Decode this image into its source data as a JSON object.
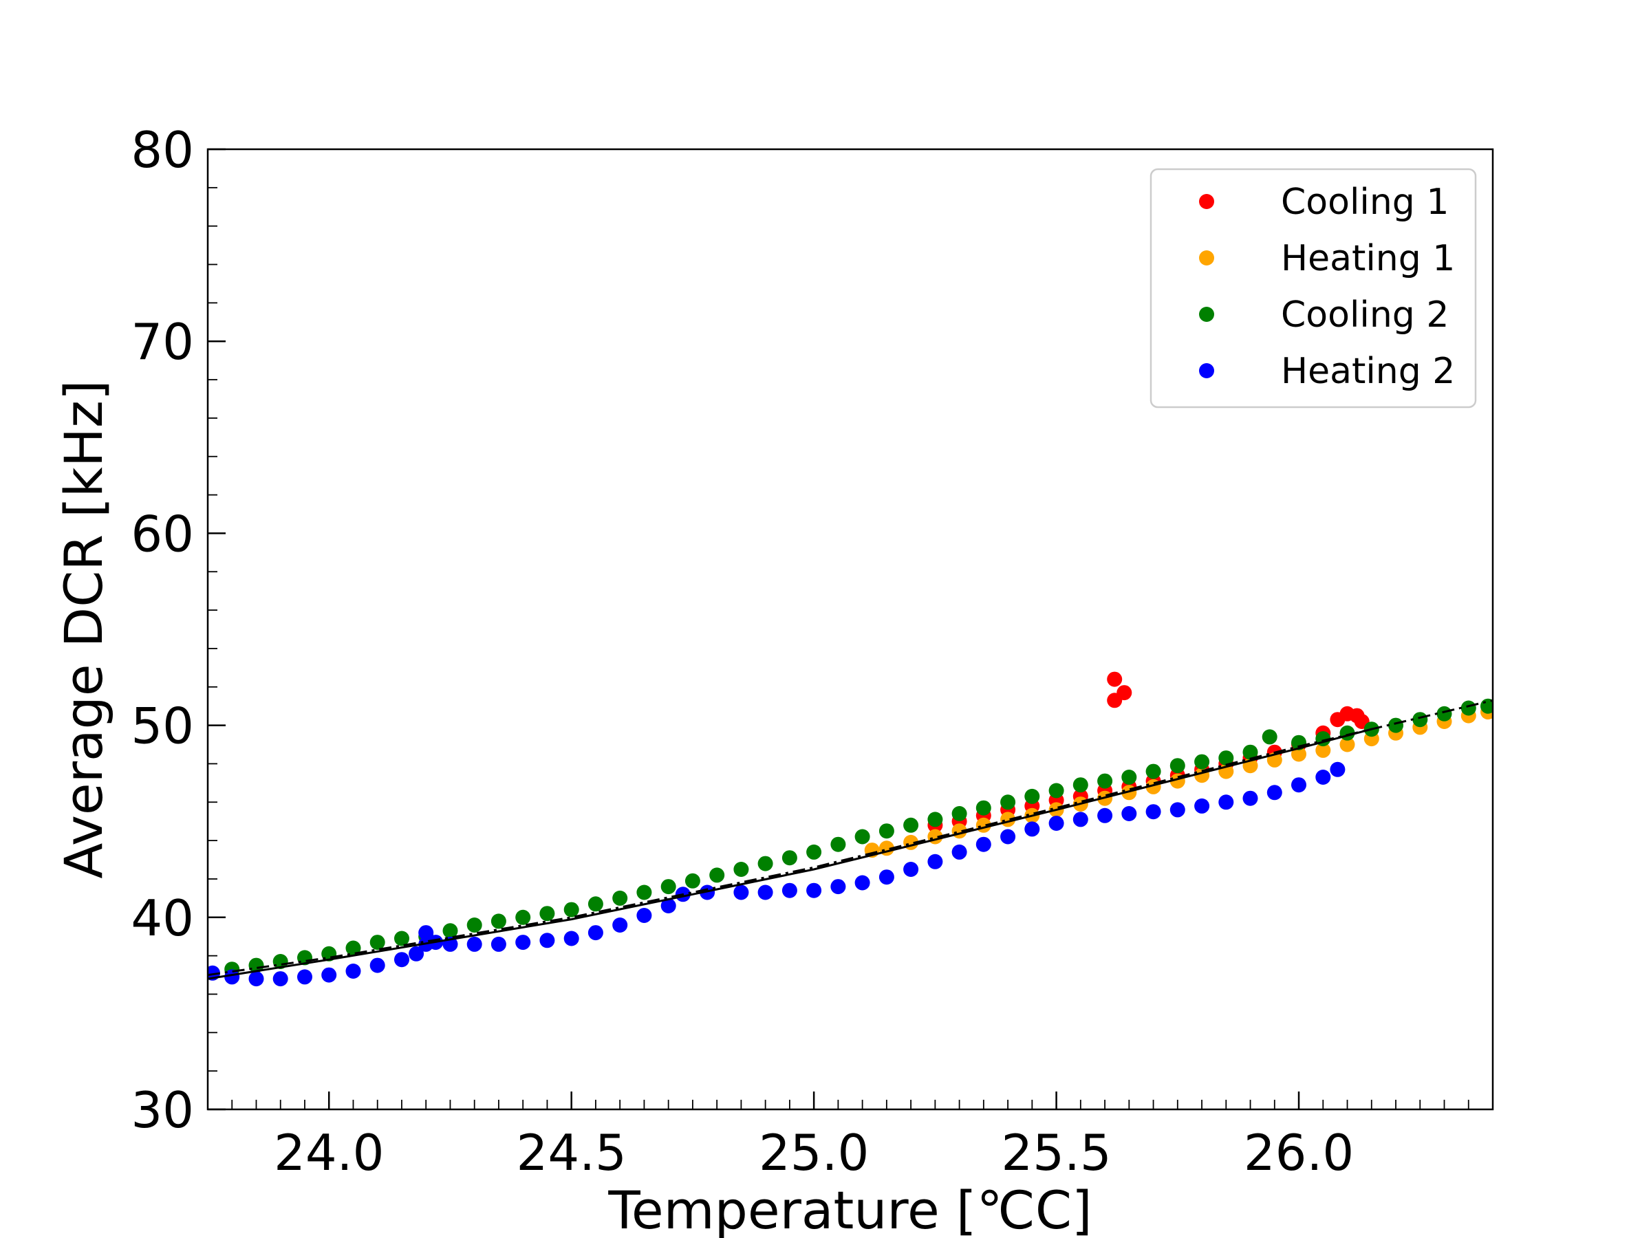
{
  "chart_data": {
    "type": "scatter",
    "title": "",
    "xlabel": "Temperature [℃C]",
    "ylabel": "Average DCR [kHz]",
    "xlim": [
      23.75,
      26.4
    ],
    "ylim": [
      30,
      80
    ],
    "x_ticks": [
      24.0,
      24.5,
      25.0,
      25.5,
      26.0
    ],
    "x_tick_labels": [
      "24.0",
      "24.5",
      "25.0",
      "25.5",
      "26.0"
    ],
    "y_ticks": [
      30,
      40,
      50,
      60,
      70,
      80
    ],
    "y_tick_labels": [
      "30",
      "40",
      "50",
      "60",
      "70",
      "80"
    ],
    "grid": false,
    "legend": {
      "position": "top-right",
      "entries": [
        {
          "label": "Cooling 1",
          "color": "#ff0000"
        },
        {
          "label": "Heating 1",
          "color": "#ffa500"
        },
        {
          "label": "Cooling 2",
          "color": "#008000"
        },
        {
          "label": "Heating 2",
          "color": "#0000ff"
        }
      ]
    },
    "series": [
      {
        "name": "Cooling 1",
        "color": "#ff0000",
        "points": [
          [
            25.25,
            44.8
          ],
          [
            25.3,
            45.0
          ],
          [
            25.35,
            45.3
          ],
          [
            25.4,
            45.6
          ],
          [
            25.45,
            45.8
          ],
          [
            25.5,
            46.1
          ],
          [
            25.55,
            46.3
          ],
          [
            25.6,
            46.6
          ],
          [
            25.65,
            46.8
          ],
          [
            25.7,
            47.1
          ],
          [
            25.75,
            47.4
          ],
          [
            25.8,
            47.7
          ],
          [
            25.85,
            48.0
          ],
          [
            25.9,
            48.3
          ],
          [
            25.95,
            48.6
          ],
          [
            26.0,
            49.0
          ],
          [
            26.05,
            49.6
          ],
          [
            26.08,
            50.3
          ],
          [
            26.1,
            50.6
          ],
          [
            26.12,
            50.5
          ],
          [
            26.13,
            50.2
          ],
          [
            25.62,
            52.4
          ],
          [
            25.62,
            51.3
          ],
          [
            25.64,
            51.7
          ]
        ]
      },
      {
        "name": "Heating 1",
        "color": "#ffa500",
        "points": [
          [
            25.12,
            43.5
          ],
          [
            25.15,
            43.6
          ],
          [
            25.2,
            43.9
          ],
          [
            25.25,
            44.2
          ],
          [
            25.3,
            44.5
          ],
          [
            25.35,
            44.8
          ],
          [
            25.4,
            45.1
          ],
          [
            25.45,
            45.3
          ],
          [
            25.5,
            45.6
          ],
          [
            25.55,
            45.9
          ],
          [
            25.6,
            46.2
          ],
          [
            25.65,
            46.5
          ],
          [
            25.7,
            46.8
          ],
          [
            25.75,
            47.1
          ],
          [
            25.8,
            47.4
          ],
          [
            25.85,
            47.6
          ],
          [
            25.9,
            47.9
          ],
          [
            25.95,
            48.2
          ],
          [
            26.0,
            48.5
          ],
          [
            26.05,
            48.7
          ],
          [
            26.1,
            49.0
          ],
          [
            26.15,
            49.3
          ],
          [
            26.2,
            49.6
          ],
          [
            26.25,
            49.9
          ],
          [
            26.3,
            50.2
          ],
          [
            26.35,
            50.5
          ],
          [
            26.39,
            50.7
          ]
        ]
      },
      {
        "name": "Cooling 2",
        "color": "#008000",
        "points": [
          [
            23.8,
            37.3
          ],
          [
            23.85,
            37.5
          ],
          [
            23.9,
            37.7
          ],
          [
            23.95,
            37.9
          ],
          [
            24.0,
            38.1
          ],
          [
            24.05,
            38.4
          ],
          [
            24.1,
            38.7
          ],
          [
            24.15,
            38.9
          ],
          [
            24.2,
            39.0
          ],
          [
            24.25,
            39.3
          ],
          [
            24.3,
            39.6
          ],
          [
            24.35,
            39.8
          ],
          [
            24.4,
            40.0
          ],
          [
            24.45,
            40.2
          ],
          [
            24.5,
            40.4
          ],
          [
            24.55,
            40.7
          ],
          [
            24.6,
            41.0
          ],
          [
            24.65,
            41.3
          ],
          [
            24.7,
            41.6
          ],
          [
            24.75,
            41.9
          ],
          [
            24.8,
            42.2
          ],
          [
            24.85,
            42.5
          ],
          [
            24.9,
            42.8
          ],
          [
            24.95,
            43.1
          ],
          [
            25.0,
            43.4
          ],
          [
            25.05,
            43.8
          ],
          [
            25.1,
            44.2
          ],
          [
            25.15,
            44.5
          ],
          [
            25.2,
            44.8
          ],
          [
            25.25,
            45.1
          ],
          [
            25.3,
            45.4
          ],
          [
            25.35,
            45.7
          ],
          [
            25.4,
            46.0
          ],
          [
            25.45,
            46.3
          ],
          [
            25.5,
            46.6
          ],
          [
            25.55,
            46.9
          ],
          [
            25.6,
            47.1
          ],
          [
            25.65,
            47.3
          ],
          [
            25.7,
            47.6
          ],
          [
            25.75,
            47.9
          ],
          [
            25.8,
            48.1
          ],
          [
            25.85,
            48.3
          ],
          [
            25.9,
            48.6
          ],
          [
            25.94,
            49.4
          ],
          [
            26.0,
            49.1
          ],
          [
            26.05,
            49.3
          ],
          [
            26.1,
            49.6
          ],
          [
            26.15,
            49.8
          ],
          [
            26.2,
            50.0
          ],
          [
            26.25,
            50.3
          ],
          [
            26.3,
            50.6
          ],
          [
            26.35,
            50.9
          ],
          [
            26.39,
            51.0
          ]
        ]
      },
      {
        "name": "Heating 2",
        "color": "#0000ff",
        "points": [
          [
            23.76,
            37.1
          ],
          [
            23.8,
            36.9
          ],
          [
            23.85,
            36.8
          ],
          [
            23.9,
            36.8
          ],
          [
            23.95,
            36.9
          ],
          [
            24.0,
            37.0
          ],
          [
            24.05,
            37.2
          ],
          [
            24.1,
            37.5
          ],
          [
            24.15,
            37.8
          ],
          [
            24.18,
            38.1
          ],
          [
            24.2,
            38.6
          ],
          [
            24.2,
            39.2
          ],
          [
            24.22,
            38.7
          ],
          [
            24.25,
            38.6
          ],
          [
            24.3,
            38.6
          ],
          [
            24.35,
            38.6
          ],
          [
            24.4,
            38.7
          ],
          [
            24.45,
            38.8
          ],
          [
            24.5,
            38.9
          ],
          [
            24.55,
            39.2
          ],
          [
            24.6,
            39.6
          ],
          [
            24.65,
            40.1
          ],
          [
            24.7,
            40.6
          ],
          [
            24.73,
            41.2
          ],
          [
            24.78,
            41.3
          ],
          [
            24.85,
            41.3
          ],
          [
            24.9,
            41.3
          ],
          [
            24.95,
            41.4
          ],
          [
            25.0,
            41.4
          ],
          [
            25.05,
            41.6
          ],
          [
            25.1,
            41.8
          ],
          [
            25.15,
            42.1
          ],
          [
            25.2,
            42.5
          ],
          [
            25.25,
            42.9
          ],
          [
            25.3,
            43.4
          ],
          [
            25.35,
            43.8
          ],
          [
            25.4,
            44.2
          ],
          [
            25.45,
            44.6
          ],
          [
            25.5,
            44.9
          ],
          [
            25.55,
            45.1
          ],
          [
            25.6,
            45.3
          ],
          [
            25.65,
            45.4
          ],
          [
            25.7,
            45.5
          ],
          [
            25.75,
            45.6
          ],
          [
            25.8,
            45.8
          ],
          [
            25.85,
            46.0
          ],
          [
            25.9,
            46.2
          ],
          [
            25.95,
            46.5
          ],
          [
            26.0,
            46.9
          ],
          [
            26.05,
            47.3
          ],
          [
            26.08,
            47.7
          ]
        ]
      }
    ],
    "fit_lines": [
      {
        "name": "fit-solid",
        "style": "solid",
        "color": "#000000",
        "points": [
          [
            23.75,
            36.8
          ],
          [
            24.0,
            37.8
          ],
          [
            24.5,
            39.9
          ],
          [
            25.0,
            42.5
          ],
          [
            25.5,
            45.6
          ],
          [
            26.0,
            48.8
          ],
          [
            26.15,
            49.8
          ]
        ]
      },
      {
        "name": "fit-dashdot",
        "style": "dashdot",
        "color": "#000000",
        "points": [
          [
            23.75,
            37.0
          ],
          [
            24.0,
            37.9
          ],
          [
            24.5,
            40.0
          ],
          [
            25.0,
            42.6
          ],
          [
            25.5,
            45.7
          ],
          [
            26.0,
            48.9
          ],
          [
            26.4,
            51.3
          ]
        ]
      }
    ]
  }
}
